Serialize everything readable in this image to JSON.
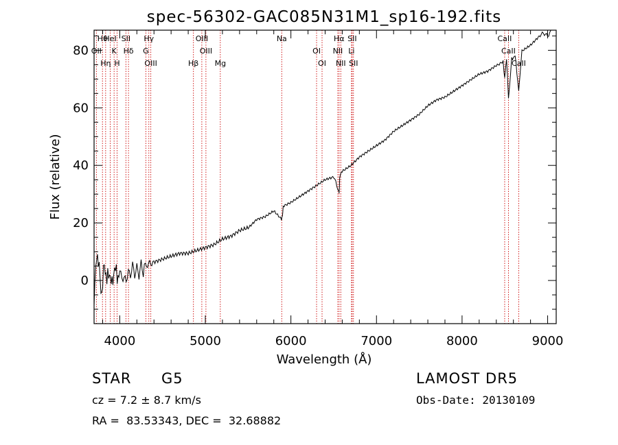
{
  "chart_data": {
    "type": "line",
    "title": "spec-56302-GAC085N31M1_sp16-192.fits",
    "xlabel": "Wavelength (Å)",
    "ylabel": "Flux (relative)",
    "xlim": [
      3700,
      9100
    ],
    "ylim": [
      -15,
      87
    ],
    "x_ticks": [
      4000,
      5000,
      6000,
      7000,
      8000,
      9000
    ],
    "y_ticks": [
      0,
      20,
      40,
      60,
      80
    ],
    "grid": false,
    "series": [
      {
        "x": [
          3700,
          3730,
          3760,
          3790,
          3820,
          3850,
          3880,
          3910,
          3940,
          3970,
          4000,
          4050,
          4100,
          4150,
          4200,
          4250,
          4300,
          4350,
          4400,
          4500,
          4600,
          4700,
          4800,
          4900,
          5000,
          5100,
          5200,
          5300,
          5400,
          5500,
          5600,
          5700,
          5800,
          5890,
          5900,
          5910,
          6000,
          6100,
          6200,
          6300,
          6400,
          6500,
          6560,
          6563,
          6570,
          6600,
          6700,
          6800,
          6900,
          7000,
          7100,
          7200,
          7300,
          7400,
          7500,
          7600,
          7700,
          7800,
          7900,
          8000,
          8100,
          8200,
          8300,
          8400,
          8480,
          8498,
          8520,
          8542,
          8580,
          8620,
          8662,
          8700,
          8800,
          8900,
          8950,
          9000,
          9050
        ],
        "y": [
          -8,
          10,
          4,
          -5,
          6,
          0,
          3,
          -2,
          5,
          1,
          3,
          0,
          2,
          4,
          3,
          4,
          5,
          6,
          6,
          7,
          8,
          9,
          9,
          10,
          11,
          12,
          14,
          15,
          17,
          18,
          21,
          22,
          24,
          21,
          22,
          26,
          27,
          29,
          31,
          33,
          35,
          36,
          31,
          30,
          36,
          38,
          40,
          43,
          45,
          47,
          49,
          52,
          54,
          56,
          58,
          61,
          63,
          64,
          66,
          68,
          70,
          72,
          73,
          75,
          76,
          70,
          77,
          63,
          77,
          78,
          66,
          80,
          82,
          85,
          86,
          85,
          87
        ]
      }
    ],
    "lines": [
      {
        "name": "Hθ",
        "x": 3798
      },
      {
        "name": "OII",
        "x": 3727
      },
      {
        "name": "Hη",
        "x": 3835
      },
      {
        "name": "HeI",
        "x": 3889
      },
      {
        "name": "K",
        "x": 3934
      },
      {
        "name": "H",
        "x": 3969
      },
      {
        "name": "SII",
        "x": 4072
      },
      {
        "name": "Hδ",
        "x": 4102
      },
      {
        "name": "OIII",
        "x": 4363
      },
      {
        "name": "Hγ",
        "x": 4340
      },
      {
        "name": "G",
        "x": 4305
      },
      {
        "name": "Hβ",
        "x": 4861
      },
      {
        "name": "OIII",
        "x": 4959
      },
      {
        "name": "OIII",
        "x": 5007
      },
      {
        "name": "Mg",
        "x": 5175
      },
      {
        "name": "Na",
        "x": 5893
      },
      {
        "name": "OI",
        "x": 6300
      },
      {
        "name": "OI",
        "x": 6364
      },
      {
        "name": "Hα",
        "x": 6563
      },
      {
        "name": "NII",
        "x": 6548
      },
      {
        "name": "NII",
        "x": 6583
      },
      {
        "name": "SII",
        "x": 6716
      },
      {
        "name": "Li",
        "x": 6708
      },
      {
        "name": "SII",
        "x": 6731
      },
      {
        "name": "CaII",
        "x": 8498
      },
      {
        "name": "CaII",
        "x": 8542
      },
      {
        "name": "CaII",
        "x": 8662
      }
    ]
  },
  "info": {
    "class_label": "STAR",
    "subclass_label": "G5",
    "survey_label": "LAMOST DR5",
    "redshift_text": "cz = 7.2 ± 8.7 km/s",
    "obsdate_text": "Obs-Date: 20130109",
    "coords_text": "RA =  83.53343, DEC =  32.68882"
  },
  "colors": {
    "spectrum": "#000000",
    "line_marker": "#cc0000",
    "axis": "#000000"
  }
}
